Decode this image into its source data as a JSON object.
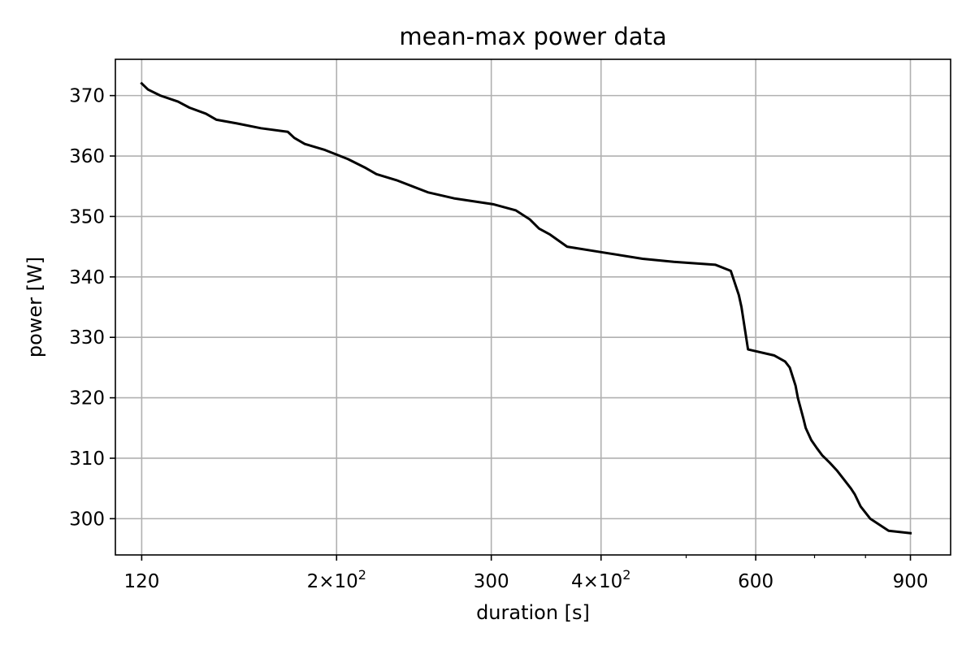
{
  "chart_data": {
    "type": "line",
    "title": "mean-max power data",
    "xlabel": "duration [s]",
    "ylabel": "power [W]",
    "xscale": "log",
    "xlim": [
      112,
      1000
    ],
    "ylim": [
      294,
      376
    ],
    "grid": true,
    "x_ticks": [
      {
        "value": 120,
        "label": "120",
        "sup": ""
      },
      {
        "value": 200,
        "label": "2×10",
        "sup": "2"
      },
      {
        "value": 300,
        "label": "300",
        "sup": ""
      },
      {
        "value": 400,
        "label": "4×10",
        "sup": "2"
      },
      {
        "value": 600,
        "label": "600",
        "sup": ""
      },
      {
        "value": 900,
        "label": "900",
        "sup": ""
      }
    ],
    "x_minor_ticks": [
      500,
      700,
      800
    ],
    "y_ticks": [
      {
        "value": 300,
        "label": "300"
      },
      {
        "value": 310,
        "label": "310"
      },
      {
        "value": 320,
        "label": "320"
      },
      {
        "value": 330,
        "label": "330"
      },
      {
        "value": 340,
        "label": "340"
      },
      {
        "value": 350,
        "label": "350"
      },
      {
        "value": 360,
        "label": "360"
      },
      {
        "value": 370,
        "label": "370"
      }
    ],
    "series": [
      {
        "color": "#000000",
        "x": [
          120,
          122,
          126,
          132,
          136,
          142,
          146,
          154,
          164,
          176,
          179,
          184,
          194,
          206,
          216,
          222,
          234,
          254,
          272,
          302,
          320,
          332,
          340,
          350,
          366,
          404,
          446,
          484,
          540,
          562,
          574,
          578,
          588,
          630,
          648,
          656,
          666,
          670,
          680,
          684,
          694,
          704,
          714,
          728,
          742,
          756,
          770,
          778,
          790,
          810,
          850,
          900
        ],
        "y": [
          372,
          371,
          370,
          369,
          368,
          367,
          366,
          365.4,
          364.6,
          364,
          363,
          362,
          361,
          359.5,
          358,
          357,
          356,
          354,
          353,
          352,
          351,
          349.5,
          348,
          347,
          345,
          344,
          343,
          342.5,
          342,
          341,
          337,
          335,
          328,
          327,
          326,
          325,
          322,
          320,
          316.5,
          315,
          313,
          311.7,
          310.5,
          309.3,
          308,
          306.5,
          305,
          304,
          302,
          300,
          298,
          297.6
        ]
      }
    ]
  }
}
